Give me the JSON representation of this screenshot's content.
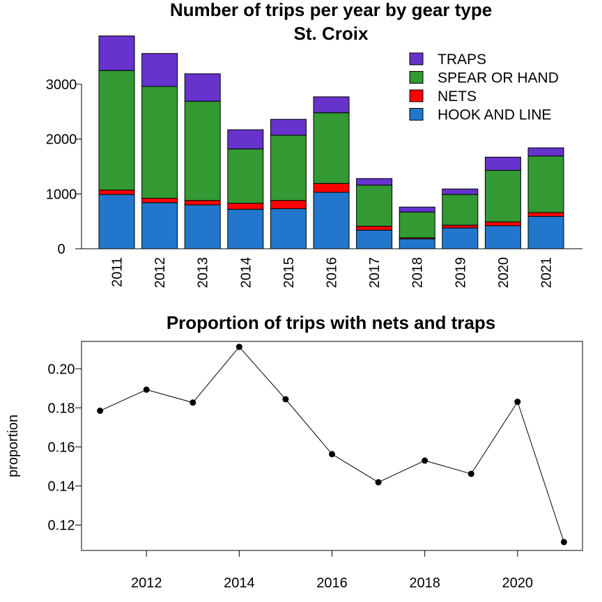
{
  "chart_data": [
    {
      "type": "bar",
      "stacked": true,
      "title": "Number of trips per year by gear type",
      "subtitle": "St. Croix",
      "categories": [
        "2011",
        "2012",
        "2013",
        "2014",
        "2015",
        "2016",
        "2017",
        "2018",
        "2019",
        "2020",
        "2021"
      ],
      "series": [
        {
          "name": "HOOK AND LINE",
          "color": "#2277CC",
          "values": [
            990,
            840,
            800,
            720,
            730,
            1030,
            340,
            180,
            380,
            420,
            590
          ]
        },
        {
          "name": "NETS",
          "color": "#FF0000",
          "values": [
            80,
            80,
            80,
            110,
            150,
            160,
            70,
            20,
            50,
            70,
            70
          ]
        },
        {
          "name": "SPEAR OR HAND",
          "color": "#339933",
          "values": [
            2180,
            2040,
            1810,
            990,
            1190,
            1290,
            750,
            470,
            560,
            940,
            1030
          ]
        },
        {
          "name": "TRAPS",
          "color": "#6633CC",
          "values": [
            630,
            600,
            500,
            350,
            290,
            290,
            120,
            90,
            100,
            240,
            150
          ]
        }
      ],
      "legend_order": [
        "TRAPS",
        "SPEAR OR HAND",
        "NETS",
        "HOOK AND LINE"
      ],
      "legend_position": "top-right",
      "yticks": [
        "0",
        "1000",
        "2000",
        "3000"
      ],
      "ytick_values": [
        0,
        1000,
        2000,
        3000
      ],
      "ylim": [
        0,
        3900
      ],
      "xlabel": "",
      "ylabel": "",
      "grid": false
    },
    {
      "type": "line",
      "title": "Proportion of trips with nets and traps",
      "x": [
        2011,
        2012,
        2013,
        2014,
        2015,
        2016,
        2017,
        2018,
        2019,
        2020,
        2021
      ],
      "series": [
        {
          "values": [
            0.1785,
            0.1893,
            0.1827,
            0.2112,
            0.1844,
            0.1563,
            0.1419,
            0.153,
            0.1462,
            0.1831,
            0.1113
          ],
          "color": "#000000",
          "marker": "filled-circle"
        }
      ],
      "xticks": [
        "2012",
        "2014",
        "2016",
        "2018",
        "2020"
      ],
      "xtick_values": [
        2012,
        2014,
        2016,
        2018,
        2020
      ],
      "yticks": [
        "0.12",
        "0.14",
        "0.16",
        "0.18",
        "0.20"
      ],
      "ytick_values": [
        0.12,
        0.14,
        0.16,
        0.18,
        0.2
      ],
      "xlim": [
        2010.6,
        2021.4
      ],
      "ylim": [
        0.107,
        0.214
      ],
      "xlabel": "",
      "ylabel": "proportion",
      "grid": false
    }
  ]
}
